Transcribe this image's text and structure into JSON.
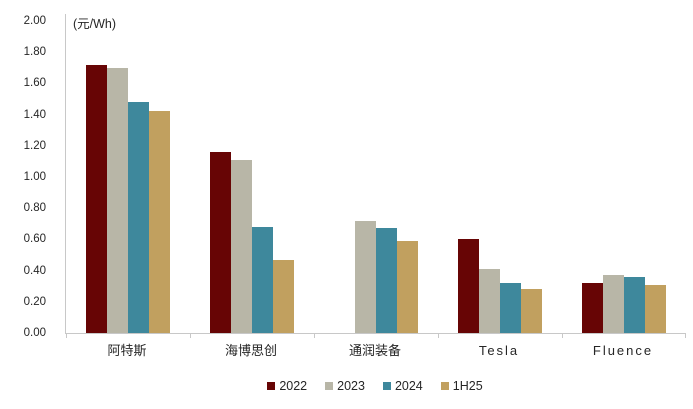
{
  "chart": {
    "axis_color": "#c8c8c8",
    "text_color": "#262626",
    "background": "#ffffff"
  },
  "chart_data": {
    "type": "bar",
    "title": "",
    "xlabel": "",
    "ylabel": "(元/Wh)",
    "categories": [
      "阿特斯",
      "海博思创",
      "通润装备",
      "Tesla",
      "Fluence"
    ],
    "series": [
      {
        "name": "2022",
        "color": "#670505",
        "values": [
          1.72,
          1.16,
          null,
          0.6,
          0.32
        ]
      },
      {
        "name": "2023",
        "color": "#b8b6a7",
        "values": [
          1.7,
          1.11,
          0.72,
          0.41,
          0.37
        ]
      },
      {
        "name": "2024",
        "color": "#3e889c",
        "values": [
          1.48,
          0.68,
          0.67,
          0.32,
          0.36
        ]
      },
      {
        "name": "1H25",
        "color": "#c1a05f",
        "values": [
          1.42,
          0.47,
          0.59,
          0.28,
          0.31
        ]
      }
    ],
    "ylim": [
      0.0,
      2.0
    ],
    "yticks": [
      0.0,
      0.2,
      0.4,
      0.6,
      0.8,
      1.0,
      1.2,
      1.4,
      1.6,
      1.8,
      2.0
    ],
    "ytick_decimals": 2,
    "grid": false,
    "legend_position": "bottom"
  }
}
